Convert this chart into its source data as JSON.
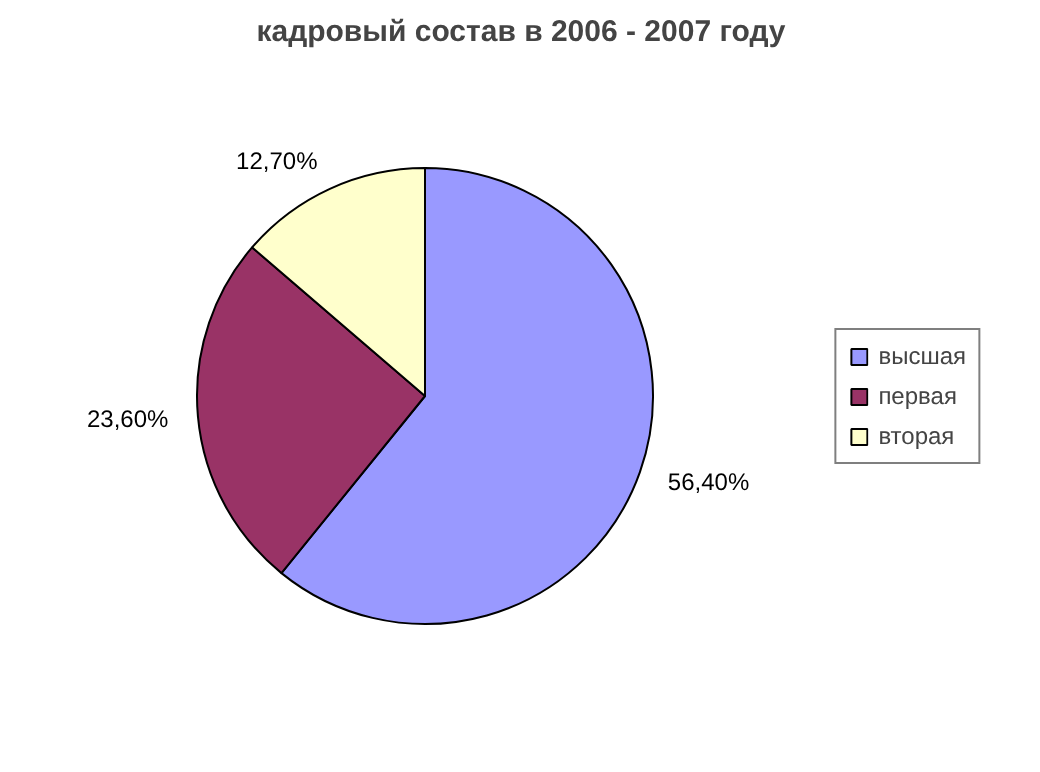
{
  "chart_data": {
    "type": "pie",
    "title": "кадровый состав в 2006 - 2007 году",
    "categories": [
      "высшая",
      "первая",
      "вторая"
    ],
    "values": [
      56.4,
      23.6,
      12.7
    ],
    "colors": [
      "#9999ff",
      "#993366",
      "#ffffcc"
    ],
    "value_labels": [
      "56,40%",
      "23,60%",
      "12,70%"
    ],
    "legend": "right"
  }
}
